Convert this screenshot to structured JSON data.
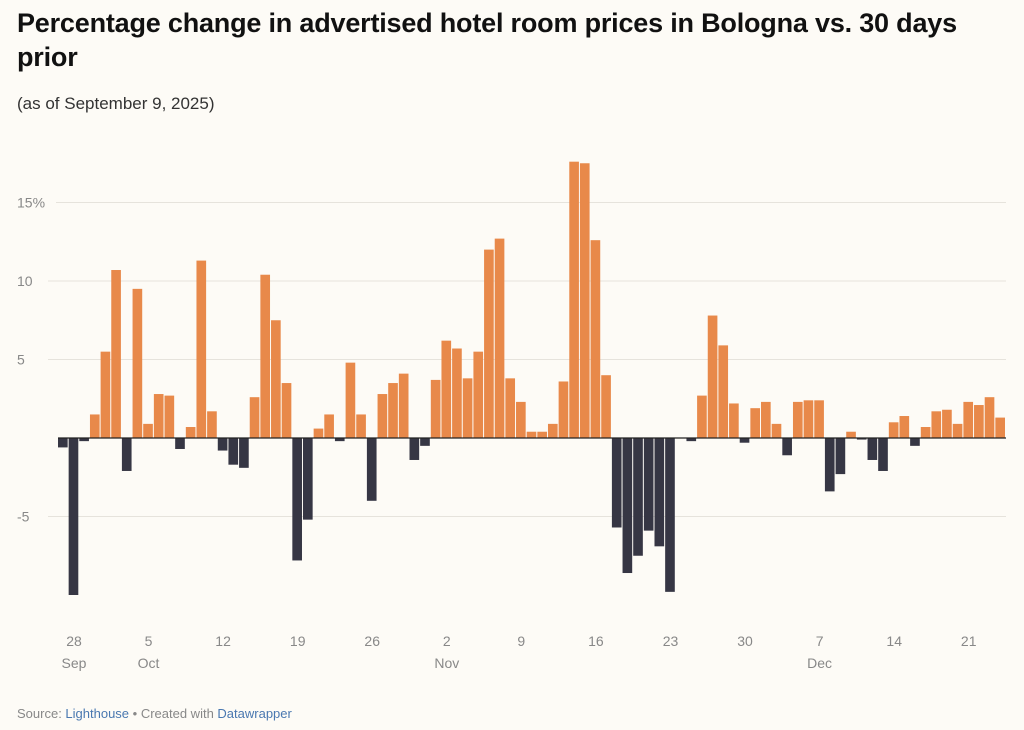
{
  "header": {
    "title": "Percentage change in advertised hotel room prices in Bologna vs. 30 days prior",
    "subtitle": "(as of September 9, 2025)"
  },
  "footer": {
    "source_prefix": "Source: ",
    "source_link": "Lighthouse",
    "separator": " • Created with ",
    "tool_link": "Datawrapper"
  },
  "colors": {
    "positive": "#e8894a",
    "negative": "#363644",
    "grid": "#e6e3dc",
    "baseline": "#222222"
  },
  "chart_data": {
    "type": "bar",
    "title": "Percentage change in advertised hotel room prices in Bologna vs. 30 days prior",
    "subtitle": "(as of September 9, 2025)",
    "xlabel": "",
    "ylabel": "",
    "ylim": [
      -11,
      19
    ],
    "yticks": [
      {
        "value": 15,
        "label": "15%"
      },
      {
        "value": 10,
        "label": "10"
      },
      {
        "value": 5,
        "label": "5"
      },
      {
        "value": -5,
        "label": "-5"
      }
    ],
    "grid": true,
    "start_date": "Sep 27",
    "xticks": [
      {
        "index": 1,
        "label": "28",
        "sub": "Sep"
      },
      {
        "index": 8,
        "label": "5",
        "sub": "Oct"
      },
      {
        "index": 15,
        "label": "12",
        "sub": ""
      },
      {
        "index": 22,
        "label": "19",
        "sub": ""
      },
      {
        "index": 29,
        "label": "26",
        "sub": ""
      },
      {
        "index": 36,
        "label": "2",
        "sub": "Nov"
      },
      {
        "index": 43,
        "label": "9",
        "sub": ""
      },
      {
        "index": 50,
        "label": "16",
        "sub": ""
      },
      {
        "index": 57,
        "label": "23",
        "sub": ""
      },
      {
        "index": 64,
        "label": "30",
        "sub": ""
      },
      {
        "index": 71,
        "label": "7",
        "sub": "Dec"
      },
      {
        "index": 78,
        "label": "14",
        "sub": ""
      },
      {
        "index": 85,
        "label": "21",
        "sub": ""
      }
    ],
    "values": [
      -0.6,
      -10.0,
      -0.2,
      1.5,
      5.5,
      10.7,
      -2.1,
      9.5,
      0.9,
      2.8,
      2.7,
      -0.7,
      0.7,
      11.3,
      1.7,
      -0.8,
      -1.7,
      -1.9,
      2.6,
      10.4,
      7.5,
      3.5,
      -7.8,
      -5.2,
      0.6,
      1.5,
      -0.2,
      4.8,
      1.5,
      -4.0,
      2.8,
      3.5,
      4.1,
      -1.4,
      -0.5,
      3.7,
      6.2,
      5.7,
      3.8,
      5.5,
      12.0,
      12.7,
      3.8,
      2.3,
      0.4,
      0.4,
      0.9,
      3.6,
      17.6,
      17.5,
      12.6,
      4.0,
      -5.7,
      -8.6,
      -7.5,
      -5.9,
      -6.9,
      -9.8,
      0.0,
      -0.2,
      2.7,
      7.8,
      5.9,
      2.2,
      -0.3,
      1.9,
      2.3,
      0.9,
      -1.1,
      2.3,
      2.4,
      2.4,
      -3.4,
      -2.3,
      0.4,
      -0.1,
      -1.4,
      -2.1,
      1.0,
      1.4,
      -0.5,
      0.7,
      1.7,
      1.8,
      0.9,
      2.3,
      2.1,
      2.6,
      1.3
    ]
  }
}
